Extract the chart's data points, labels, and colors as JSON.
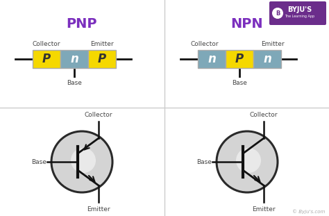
{
  "title_pnp": "PNP",
  "title_npn": "NPN",
  "title_color": "#7B2FBE",
  "bg_color": "#ffffff",
  "yellow_color": "#F5D800",
  "teal_color": "#7EA8B8",
  "divider_color": "#cccccc",
  "text_color": "#444444",
  "circle_fill": "#d4d4d4",
  "circle_edge": "#2a2a2a",
  "line_color": "#111111",
  "byju_text": "© Byju's.com",
  "footer_color": "#aaaaaa",
  "logo_bg": "#6B2D8B"
}
